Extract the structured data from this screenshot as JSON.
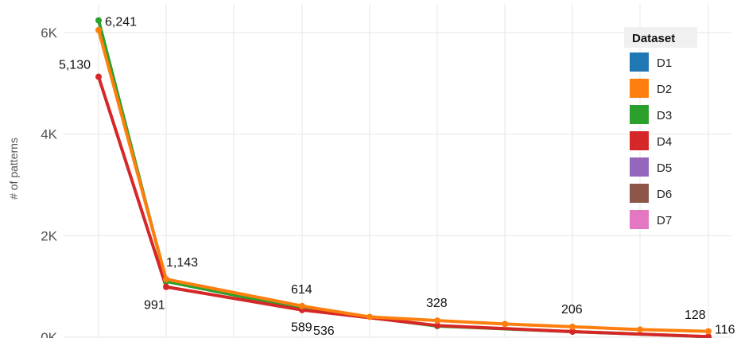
{
  "chart_data": {
    "type": "line",
    "title": "",
    "xlabel": "",
    "ylabel": "# of patterns",
    "ylim": [
      0,
      6500
    ],
    "y_ticks": [
      {
        "value": 0,
        "label": "0K"
      },
      {
        "value": 2000,
        "label": "2K"
      },
      {
        "value": 4000,
        "label": "4K"
      },
      {
        "value": 6000,
        "label": "6K"
      }
    ],
    "x": [
      1,
      2,
      3,
      4,
      5,
      6,
      7,
      8,
      9
    ],
    "grid": true,
    "legend": {
      "title": "Dataset",
      "placement": "top-right",
      "entries": [
        {
          "label": "D1",
          "color": "#1f77b4"
        },
        {
          "label": "D2",
          "color": "#ff7f0e"
        },
        {
          "label": "D3",
          "color": "#2ca02c"
        },
        {
          "label": "D4",
          "color": "#d62728"
        },
        {
          "label": "D5",
          "color": "#9467bd"
        },
        {
          "label": "D6",
          "color": "#8c564b"
        },
        {
          "label": "D7",
          "color": "#e377c2"
        }
      ]
    },
    "series": [
      {
        "name": "D3",
        "color": "#2ca02c",
        "points": [
          {
            "x": 1,
            "y": 6241
          },
          {
            "x": 2,
            "y": 1100
          },
          {
            "x": 3,
            "y": 560
          },
          {
            "x": 5,
            "y": 220
          },
          {
            "x": 7,
            "y": 110
          },
          {
            "x": 9,
            "y": 10
          }
        ]
      },
      {
        "name": "D4",
        "color": "#d62728",
        "points": [
          {
            "x": 1,
            "y": 5130
          },
          {
            "x": 2,
            "y": 991
          },
          {
            "x": 3,
            "y": 536
          },
          {
            "x": 5,
            "y": 230
          },
          {
            "x": 7,
            "y": 110
          },
          {
            "x": 9,
            "y": 12
          }
        ]
      },
      {
        "name": "D2",
        "color": "#ff7f0e",
        "points": [
          {
            "x": 1,
            "y": 6050
          },
          {
            "x": 2,
            "y": 1143
          },
          {
            "x": 3,
            "y": 614
          },
          {
            "x": 4,
            "y": 400
          },
          {
            "x": 5,
            "y": 328
          },
          {
            "x": 6,
            "y": 260
          },
          {
            "x": 7,
            "y": 206
          },
          {
            "x": 8,
            "y": 150
          },
          {
            "x": 9,
            "y": 116
          }
        ]
      }
    ],
    "annotations": [
      {
        "text": "6,241",
        "x": 1,
        "y": 6241
      },
      {
        "text": "5,130",
        "x": 1,
        "y": 5130
      },
      {
        "text": "1,143",
        "x": 2,
        "y": 1143
      },
      {
        "text": "991",
        "x": 2,
        "y": 991
      },
      {
        "text": "614",
        "x": 3,
        "y": 614
      },
      {
        "text": "589",
        "x": 3,
        "y": 589
      },
      {
        "text": "536",
        "x": 3,
        "y": 536
      },
      {
        "text": "328",
        "x": 5,
        "y": 328
      },
      {
        "text": "206",
        "x": 7,
        "y": 206
      },
      {
        "text": "128",
        "x": 9,
        "y": 128
      },
      {
        "text": "116",
        "x": 9,
        "y": 116
      }
    ]
  }
}
